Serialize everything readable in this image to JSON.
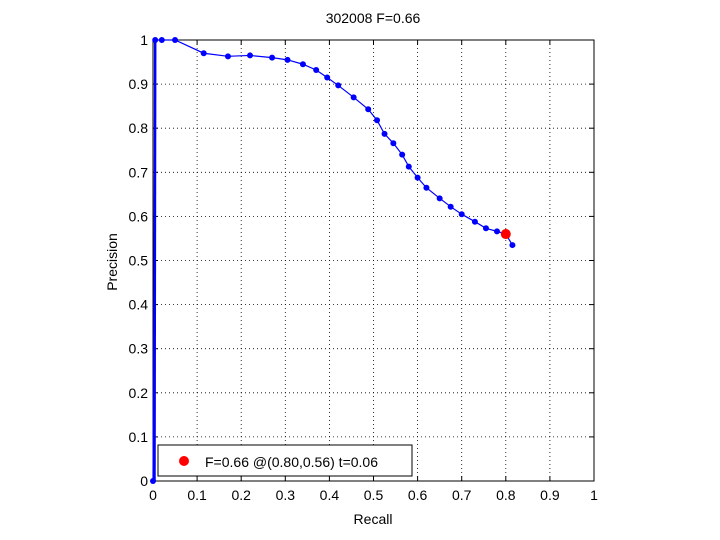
{
  "chart_data": {
    "type": "line",
    "title": "302008 F=0.66",
    "xlabel": "Recall",
    "ylabel": "Precision",
    "xlim": [
      0,
      1
    ],
    "ylim": [
      0,
      1
    ],
    "xticks": [
      "0",
      "0.1",
      "0.2",
      "0.3",
      "0.4",
      "0.5",
      "0.6",
      "0.7",
      "0.8",
      "0.9",
      "1"
    ],
    "yticks": [
      "0",
      "0.1",
      "0.2",
      "0.3",
      "0.4",
      "0.5",
      "0.6",
      "0.7",
      "0.8",
      "0.9",
      "1"
    ],
    "grid": true,
    "grid_style": "dotted",
    "legend_position": "bottom-left",
    "series": [
      {
        "color": "#0000ff",
        "marker": "dot",
        "points": [
          [
            0.0,
            0.0
          ],
          [
            0.005,
            1.0
          ],
          [
            0.02,
            1.0
          ],
          [
            0.05,
            1.0
          ],
          [
            0.115,
            0.97
          ],
          [
            0.17,
            0.963
          ],
          [
            0.22,
            0.965
          ],
          [
            0.27,
            0.96
          ],
          [
            0.305,
            0.955
          ],
          [
            0.34,
            0.945
          ],
          [
            0.37,
            0.932
          ],
          [
            0.395,
            0.915
          ],
          [
            0.42,
            0.897
          ],
          [
            0.455,
            0.87
          ],
          [
            0.488,
            0.843
          ],
          [
            0.508,
            0.818
          ],
          [
            0.525,
            0.787
          ],
          [
            0.545,
            0.766
          ],
          [
            0.565,
            0.74
          ],
          [
            0.58,
            0.713
          ],
          [
            0.6,
            0.688
          ],
          [
            0.62,
            0.665
          ],
          [
            0.65,
            0.641
          ],
          [
            0.675,
            0.622
          ],
          [
            0.7,
            0.605
          ],
          [
            0.73,
            0.588
          ],
          [
            0.755,
            0.573
          ],
          [
            0.78,
            0.566
          ],
          [
            0.8,
            0.56
          ],
          [
            0.815,
            0.535
          ]
        ]
      }
    ],
    "highlight": {
      "color": "#ff0000",
      "x": 0.8,
      "y": 0.56,
      "label": "F=0.66 @(0.80,0.56) t=0.06"
    }
  }
}
